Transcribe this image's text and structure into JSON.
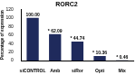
{
  "chart_data": {
    "type": "bar",
    "title": "RORC2",
    "y_label": "Percentage of expression",
    "categories": [
      "siCONTROL",
      "Amb",
      "siRor",
      "Opti",
      "Mix"
    ],
    "values": [
      100,
      62.09,
      44.74,
      10.36,
      0.46
    ],
    "value_labels": [
      "100.00",
      "* 62.09",
      "* 44.74",
      "* 10.36",
      "* 0.46"
    ],
    "data_labels": true,
    "color": "#1f2a5c",
    "ylim": [
      0,
      120
    ],
    "yticks": [
      0,
      20,
      40,
      60,
      80,
      100,
      120
    ],
    "grid": false
  }
}
